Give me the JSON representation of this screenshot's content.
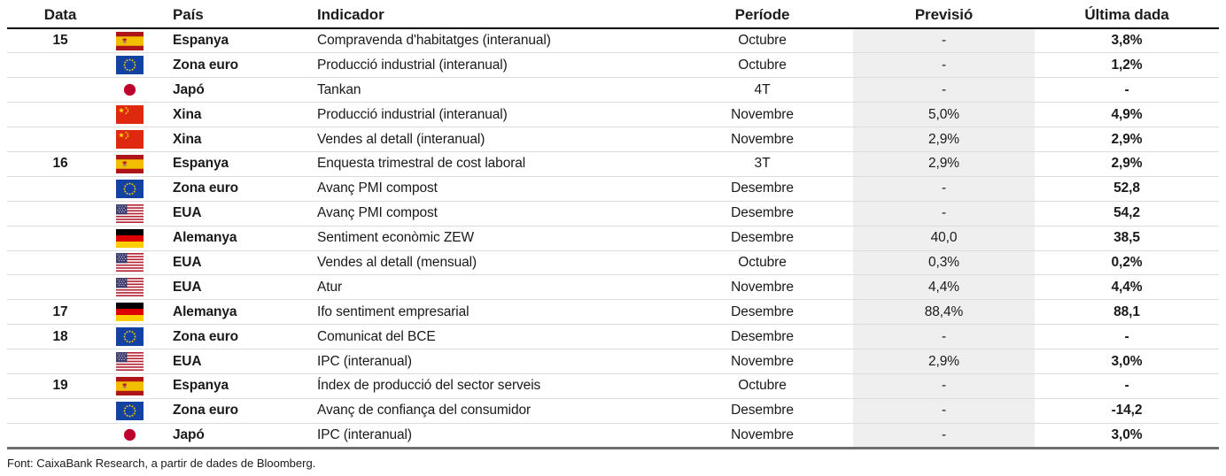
{
  "table": {
    "headers": {
      "data": "Data",
      "pais": "País",
      "indicador": "Indicador",
      "periode": "Període",
      "previsio": "Previsió",
      "ultima_dada": "Última dada"
    },
    "rows": [
      {
        "data": "15",
        "flag": "es",
        "pais": "Espanya",
        "indicador": "Compravenda d'habitatges (interanual)",
        "periode": "Octubre",
        "previsio": "-",
        "ultima_dada": "3,8%"
      },
      {
        "data": "",
        "flag": "eu",
        "pais": "Zona euro",
        "indicador": "Producció industrial (interanual)",
        "periode": "Octubre",
        "previsio": "-",
        "ultima_dada": "1,2%"
      },
      {
        "data": "",
        "flag": "jp",
        "pais": "Japó",
        "indicador": "Tankan",
        "periode": "4T",
        "previsio": "-",
        "ultima_dada": "-"
      },
      {
        "data": "",
        "flag": "cn",
        "pais": "Xina",
        "indicador": "Producció industrial (interanual)",
        "periode": "Novembre",
        "previsio": "5,0%",
        "ultima_dada": "4,9%"
      },
      {
        "data": "",
        "flag": "cn",
        "pais": "Xina",
        "indicador": "Vendes al detall (interanual)",
        "periode": "Novembre",
        "previsio": "2,9%",
        "ultima_dada": "2,9%"
      },
      {
        "data": "16",
        "flag": "es",
        "pais": "Espanya",
        "indicador": "Enquesta trimestral de cost laboral",
        "periode": "3T",
        "previsio": "2,9%",
        "ultima_dada": "2,9%"
      },
      {
        "data": "",
        "flag": "eu",
        "pais": "Zona euro",
        "indicador": "Avanç PMI compost",
        "periode": "Desembre",
        "previsio": "-",
        "ultima_dada": "52,8"
      },
      {
        "data": "",
        "flag": "us",
        "pais": "EUA",
        "indicador": "Avanç PMI compost",
        "periode": "Desembre",
        "previsio": "-",
        "ultima_dada": "54,2"
      },
      {
        "data": "",
        "flag": "de",
        "pais": "Alemanya",
        "indicador": "Sentiment econòmic ZEW",
        "periode": "Desembre",
        "previsio": "40,0",
        "ultima_dada": "38,5"
      },
      {
        "data": "",
        "flag": "us",
        "pais": "EUA",
        "indicador": "Vendes al detall (mensual)",
        "periode": "Octubre",
        "previsio": "0,3%",
        "ultima_dada": "0,2%"
      },
      {
        "data": "",
        "flag": "us",
        "pais": "EUA",
        "indicador": "Atur",
        "periode": "Novembre",
        "previsio": "4,4%",
        "ultima_dada": "4,4%"
      },
      {
        "data": "17",
        "flag": "de",
        "pais": "Alemanya",
        "indicador": "Ifo sentiment empresarial",
        "periode": "Desembre",
        "previsio": "88,4%",
        "ultima_dada": "88,1"
      },
      {
        "data": "18",
        "flag": "eu",
        "pais": "Zona euro",
        "indicador": "Comunicat del BCE",
        "periode": "Desembre",
        "previsio": "-",
        "ultima_dada": "-"
      },
      {
        "data": "",
        "flag": "us",
        "pais": "EUA",
        "indicador": "IPC (interanual)",
        "periode": "Novembre",
        "previsio": "2,9%",
        "ultima_dada": "3,0%"
      },
      {
        "data": "19",
        "flag": "es",
        "pais": "Espanya",
        "indicador": "Índex de producció del sector serveis",
        "periode": "Octubre",
        "previsio": "-",
        "ultima_dada": "-"
      },
      {
        "data": "",
        "flag": "eu",
        "pais": "Zona euro",
        "indicador": "Avanç de confiança del consumidor",
        "periode": "Desembre",
        "previsio": "-",
        "ultima_dada": "-14,2"
      },
      {
        "data": "",
        "flag": "jp",
        "pais": "Japó",
        "indicador": "IPC (interanual)",
        "periode": "Novembre",
        "previsio": "-",
        "ultima_dada": "3,0%"
      }
    ]
  },
  "flag_names": {
    "es": "spain-flag-icon",
    "eu": "eu-flag-icon",
    "jp": "japan-flag-icon",
    "cn": "china-flag-icon",
    "us": "usa-flag-icon",
    "de": "germany-flag-icon"
  },
  "colors": {
    "forecast_band": "#efefef",
    "header_rule": "#000000",
    "bottom_rule": "#6e6e6e",
    "row_line": "#dcdcdc",
    "text": "#1a1a1a"
  },
  "footer": {
    "source": "Font: CaixaBank Research, a partir de dades de Bloomberg."
  }
}
